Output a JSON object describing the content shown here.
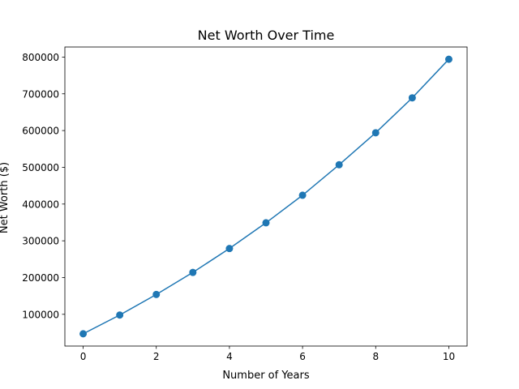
{
  "chart_data": {
    "type": "line",
    "title": "Net Worth Over Time",
    "xlabel": "Number of Years",
    "ylabel": "Net Worth ($)",
    "x": [
      0,
      1,
      2,
      3,
      4,
      5,
      6,
      7,
      8,
      9,
      10
    ],
    "series": [
      {
        "values": [
          47000,
          98000,
          154000,
          214000,
          279000,
          349000,
          424000,
          507000,
          594000,
          689000,
          794000
        ],
        "color": "#1f77b4",
        "marker": "circle"
      }
    ],
    "xlim": [
      -0.5,
      10.5
    ],
    "ylim": [
      13650,
      827350
    ],
    "x_ticks": [
      0,
      2,
      4,
      6,
      8,
      10
    ],
    "x_tick_labels": [
      "0",
      "2",
      "4",
      "6",
      "8",
      "10"
    ],
    "y_ticks": [
      100000,
      200000,
      300000,
      400000,
      500000,
      600000,
      700000,
      800000
    ],
    "y_tick_labels": [
      "100000",
      "200000",
      "300000",
      "400000",
      "500000",
      "600000",
      "700000",
      "800000"
    ],
    "grid": false,
    "legend": "none"
  }
}
